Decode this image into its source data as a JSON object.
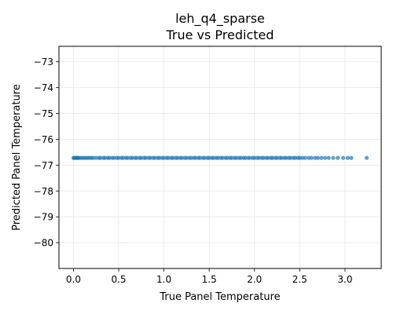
{
  "chart_data": {
    "type": "scatter",
    "title": "leh_q4_sparse",
    "subtitle": "True vs Predicted",
    "xlabel": "True Panel Temperature",
    "ylabel": "Predicted Panel Temperature",
    "xlim": [
      -0.16,
      3.4
    ],
    "ylim": [
      -81.0,
      -72.4
    ],
    "x_ticks": [
      0.0,
      0.5,
      1.0,
      1.5,
      2.0,
      2.5,
      3.0
    ],
    "x_tick_labels": [
      "0.0",
      "0.5",
      "1.0",
      "1.5",
      "2.0",
      "2.5",
      "3.0"
    ],
    "y_ticks": [
      -73,
      -74,
      -75,
      -76,
      -77,
      -78,
      -79,
      -80
    ],
    "y_tick_labels": [
      "−73",
      "−74",
      "−75",
      "−76",
      "−77",
      "−78",
      "−79",
      "−80"
    ],
    "grid": true,
    "point_color": "#1f77b4",
    "series": [
      {
        "x": [
          0.0,
          0.01,
          0.02,
          0.03,
          0.04,
          0.05,
          0.06,
          0.08,
          0.1,
          0.12,
          0.14,
          0.16,
          0.18,
          0.2,
          0.22,
          0.25,
          0.28,
          0.3,
          0.33,
          0.35,
          0.38,
          0.4,
          0.43,
          0.45,
          0.48,
          0.5,
          0.53,
          0.55,
          0.58,
          0.6,
          0.63,
          0.65,
          0.68,
          0.7,
          0.73,
          0.75,
          0.78,
          0.8,
          0.83,
          0.85,
          0.88,
          0.9,
          0.93,
          0.95,
          0.98,
          1.0,
          1.03,
          1.05,
          1.08,
          1.1,
          1.13,
          1.15,
          1.18,
          1.2,
          1.23,
          1.25,
          1.28,
          1.3,
          1.33,
          1.35,
          1.38,
          1.4,
          1.43,
          1.45,
          1.48,
          1.5,
          1.53,
          1.55,
          1.58,
          1.6,
          1.63,
          1.65,
          1.68,
          1.7,
          1.73,
          1.75,
          1.78,
          1.8,
          1.83,
          1.85,
          1.88,
          1.9,
          1.93,
          1.95,
          1.98,
          2.0,
          2.03,
          2.05,
          2.08,
          2.1,
          2.13,
          2.15,
          2.18,
          2.2,
          2.23,
          2.25,
          2.28,
          2.3,
          2.33,
          2.35,
          2.38,
          2.4,
          2.43,
          2.45,
          2.48,
          2.5,
          2.53,
          2.56,
          2.6,
          2.63,
          2.67,
          2.7,
          2.74,
          2.78,
          2.82,
          2.87,
          2.92,
          2.98,
          3.03,
          3.07,
          3.24
        ],
        "y": [
          -76.72,
          -76.72,
          -76.72,
          -76.72,
          -76.72,
          -76.72,
          -76.72,
          -76.72,
          -76.72,
          -76.72,
          -76.72,
          -76.72,
          -76.72,
          -76.72,
          -76.72,
          -76.72,
          -76.72,
          -76.72,
          -76.72,
          -76.72,
          -76.72,
          -76.72,
          -76.72,
          -76.72,
          -76.72,
          -76.72,
          -76.72,
          -76.72,
          -76.72,
          -76.72,
          -76.72,
          -76.72,
          -76.72,
          -76.72,
          -76.72,
          -76.72,
          -76.72,
          -76.72,
          -76.72,
          -76.72,
          -76.72,
          -76.72,
          -76.72,
          -76.72,
          -76.72,
          -76.72,
          -76.72,
          -76.72,
          -76.72,
          -76.72,
          -76.72,
          -76.72,
          -76.72,
          -76.72,
          -76.72,
          -76.72,
          -76.72,
          -76.72,
          -76.72,
          -76.72,
          -76.72,
          -76.72,
          -76.72,
          -76.72,
          -76.72,
          -76.72,
          -76.72,
          -76.72,
          -76.72,
          -76.72,
          -76.72,
          -76.72,
          -76.72,
          -76.72,
          -76.72,
          -76.72,
          -76.72,
          -76.72,
          -76.72,
          -76.72,
          -76.72,
          -76.72,
          -76.72,
          -76.72,
          -76.72,
          -76.72,
          -76.72,
          -76.72,
          -76.72,
          -76.72,
          -76.72,
          -76.72,
          -76.72,
          -76.72,
          -76.72,
          -76.72,
          -76.72,
          -76.72,
          -76.72,
          -76.72,
          -76.72,
          -76.72,
          -76.72,
          -76.72,
          -76.72,
          -76.72,
          -76.72,
          -76.72,
          -76.72,
          -76.72,
          -76.72,
          -76.72,
          -76.72,
          -76.72,
          -76.72,
          -76.72,
          -76.72,
          -76.72,
          -76.72,
          -76.72,
          -76.72
        ]
      }
    ]
  }
}
